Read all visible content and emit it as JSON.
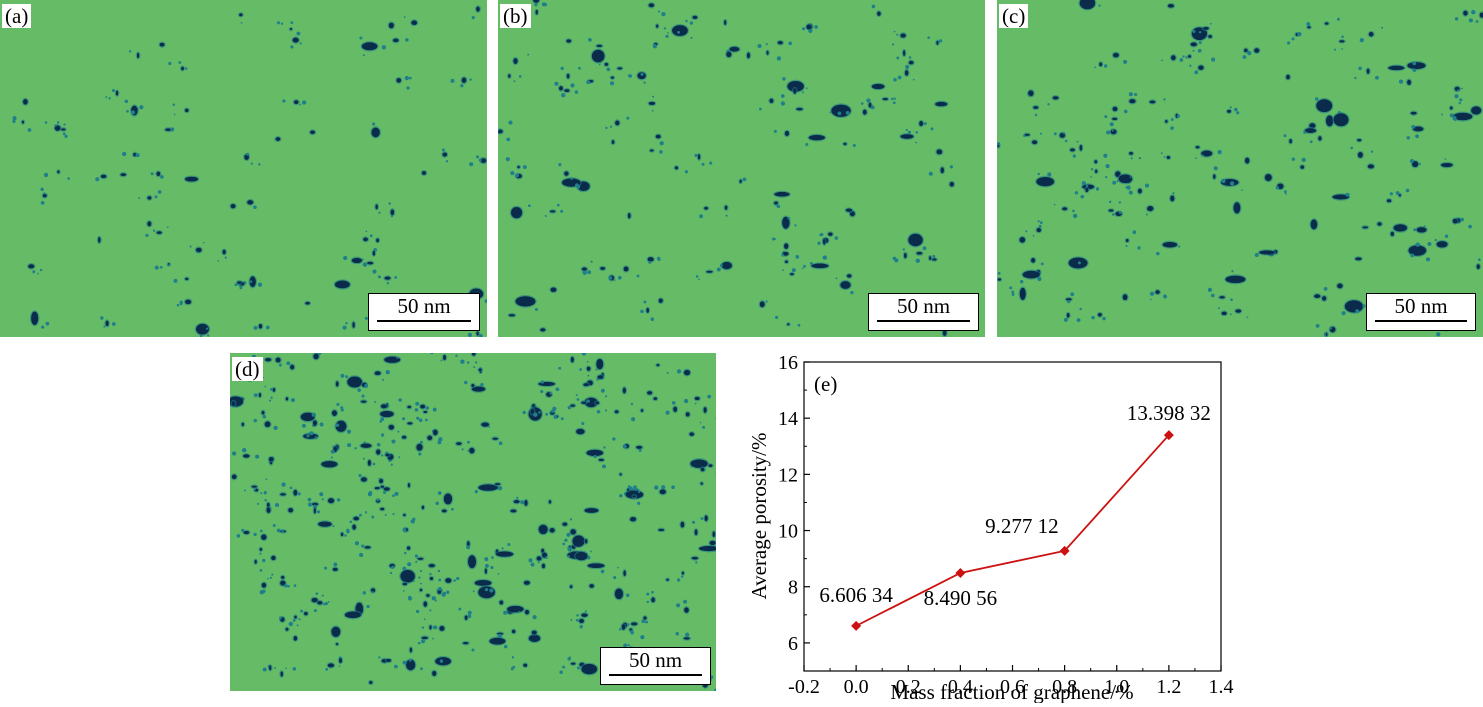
{
  "panels": [
    {
      "id": "a",
      "label": "(a)",
      "scale": "50 nm"
    },
    {
      "id": "b",
      "label": "(b)",
      "scale": "50 nm"
    },
    {
      "id": "c",
      "label": "(c)",
      "scale": "50 nm"
    },
    {
      "id": "d",
      "label": "(d)",
      "scale": "50 nm"
    }
  ],
  "colors": {
    "matrix": "#66bb66",
    "pore": "#0b2b4a",
    "pore_edge": "#1f7f8a",
    "line": "#cc1111"
  },
  "chart_data": {
    "type": "line",
    "panel_label": "(e)",
    "xlabel": "Mass fraction of graphene/%",
    "ylabel": "Average porosity/%",
    "xlim": [
      -0.2,
      1.4
    ],
    "ylim": [
      5,
      16
    ],
    "xticks": [
      -0.2,
      0.0,
      0.2,
      0.4,
      0.6,
      0.8,
      1.0,
      1.2,
      1.4
    ],
    "xtick_labels": [
      "-0.2",
      "0.0",
      "0.2",
      "0.4",
      "0.6",
      "0.8",
      "1.0",
      "1.2",
      "1.4"
    ],
    "yticks": [
      6,
      8,
      10,
      12,
      14,
      16
    ],
    "ytick_labels": [
      "6",
      "8",
      "10",
      "12",
      "14",
      "16"
    ],
    "x": [
      0.0,
      0.4,
      0.8,
      1.2
    ],
    "y": [
      6.60634,
      8.49056,
      9.27712,
      13.39832
    ],
    "point_labels": [
      "6.606 34",
      "8.490 56",
      "9.277 12",
      "13.398 32"
    ],
    "marker": "diamond",
    "grid": false
  }
}
